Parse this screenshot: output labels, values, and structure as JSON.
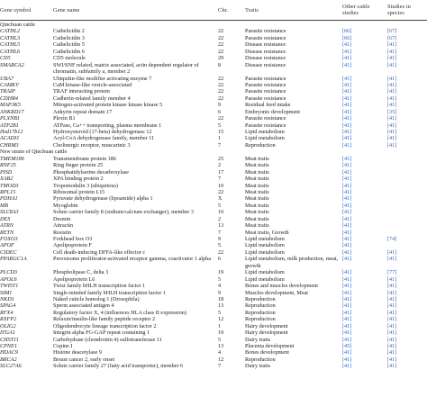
{
  "header": {
    "symbol": "Gene symbol",
    "name": "Gene name",
    "chr": "Chr.",
    "traits": "Traits",
    "other1": "Other cattle",
    "other2": "studies",
    "studies1": "Studies in",
    "studies2": "species"
  },
  "sections": [
    {
      "title": "Qinchuan cattle",
      "rows": [
        {
          "sym": "CATHL2",
          "name": "Cathelicidin 2",
          "chr": "22",
          "trait": "Parasite resistance",
          "other": "[66]",
          "species": "[67]"
        },
        {
          "sym": "CATHL3",
          "name": "Cathelicidin 3",
          "chr": "22",
          "trait": "Parasite resistance",
          "other": "[66]",
          "species": "[67]"
        },
        {
          "sym": "CATHL5",
          "name": "Cathelicidin 5",
          "chr": "22",
          "trait": "Disease resistance",
          "other": "[41]",
          "species": "[41]"
        },
        {
          "sym": "CATHL6",
          "name": "Cathelicidin 6",
          "chr": "22",
          "trait": "Disease resistance",
          "other": "[41]",
          "species": "[41]"
        },
        {
          "sym": "CD5",
          "name": "CD5 molecule",
          "chr": "29",
          "trait": "Disease resistance",
          "other": "[41]",
          "species": "[41]"
        },
        {
          "sym": "SMARCA2",
          "name": "SWI/SNF related, matrix associated, actin dependent regulator of chromatin, subfamily a, member 2",
          "chr": "8",
          "trait": "Disease resistance",
          "other": "[41]",
          "species": "[41]",
          "tall": true
        },
        {
          "sym": "UBA7",
          "name": "Ubiquitin-like modifier activating enzyme 7",
          "chr": "22",
          "trait": "Parasite resistance",
          "other": "[41]",
          "species": "[41]"
        },
        {
          "sym": "CAMKV",
          "name": "CaM kinase-like vesicle-associated",
          "chr": "22",
          "trait": "Parasite resistance",
          "other": "[41]",
          "species": "[41]"
        },
        {
          "sym": "TRAIP",
          "name": "TRAF interacting protein",
          "chr": "22",
          "trait": "Parasite resistance",
          "other": "[41]",
          "species": "[41]"
        },
        {
          "sym": "CDHR4",
          "name": "Cadherin-related family member 4",
          "chr": "22",
          "trait": "Parasite resistance",
          "other": "[41]",
          "species": "[41]"
        },
        {
          "sym": "MAP3K5",
          "name": "Mitogen-activated protein kinase kinase kinase 5",
          "chr": "9",
          "trait": "Residual feed intake",
          "other": "[41]",
          "species": "[41]"
        },
        {
          "sym": "ANKRD17",
          "name": "Ankyrin repeat domain 17",
          "chr": "6",
          "trait": "Embryonic development",
          "other": "[41]",
          "species": "[35]"
        },
        {
          "sym": "PLXNB1",
          "name": "Plexin B1",
          "chr": "22",
          "trait": "Parasite resistance",
          "other": "[41]",
          "species": "[41]"
        },
        {
          "sym": "ATP2B1",
          "name": "ATPase, Ca++ transporting, plasma membrane 1",
          "chr": "5",
          "trait": "Parasite resistance",
          "other": "[41]",
          "species": "[41]"
        },
        {
          "sym": "Hsd17b12",
          "name": "Hydroxysteroid (17-beta) dehydrogenase 12",
          "chr": "15",
          "trait": "Lipid metabolism",
          "other": "[41]",
          "species": "[41]"
        },
        {
          "sym": "ACADI1",
          "name": "Acyl-CoA dehydrogenase family, member 11",
          "chr": "1",
          "trait": "Lipid metabolism",
          "other": "[41]",
          "species": "[41]"
        },
        {
          "sym": "CHRM3",
          "name": "Cholinergic receptor, muscarinic 3",
          "chr": "7",
          "trait": "Reproduction",
          "other": "[41]",
          "species": "[41]"
        }
      ]
    },
    {
      "title": "New strain of Qinchuan cattle",
      "rows": [
        {
          "sym": "TMEM186",
          "name": "Transmembrane protein 186",
          "chr": "25",
          "trait": "Meat traits",
          "other": "[41]",
          "species": ""
        },
        {
          "sym": "RNF25",
          "name": "Ring finger protein 25",
          "chr": "2",
          "trait": "Meat traits",
          "other": "[41]",
          "species": ""
        },
        {
          "sym": "PISD",
          "name": "Phosphatidylserine decarboxylase",
          "chr": "17",
          "trait": "Meat traits",
          "other": "[41]",
          "species": ""
        },
        {
          "sym": "XAB2",
          "name": "XPA binding protein 2",
          "chr": "7",
          "trait": "Meat traits",
          "other": "[41]",
          "species": ""
        },
        {
          "sym": "TMOD3",
          "name": "Tropomodulin 3 (ubiquitous)",
          "chr": "10",
          "trait": "Meat traits",
          "other": "[41]",
          "species": ""
        },
        {
          "sym": "RPL15",
          "name": "Ribosomal protein L15",
          "chr": "22",
          "trait": "Meat traits",
          "other": "[41]",
          "species": ""
        },
        {
          "sym": "PDHA1",
          "name": "Pyruvate dehydrogenase (lipoamide) alpha 1",
          "chr": "X",
          "trait": "Meat traits",
          "other": "[41]",
          "species": ""
        },
        {
          "sym": "MB",
          "name": "Myoglobin",
          "chr": "5",
          "trait": "Meat traits",
          "other": "[41]",
          "species": ""
        },
        {
          "sym": "SLC8A3",
          "name": "Solute carrier family 8 (sodium/calcium exchanger), member 3",
          "chr": "10",
          "trait": "Meat traits",
          "other": "[41]",
          "species": ""
        },
        {
          "sym": "DES",
          "name": "Desmin",
          "chr": "2",
          "trait": "Meat traits",
          "other": "[41]",
          "species": ""
        },
        {
          "sym": "ATRN",
          "name": "Attractin",
          "chr": "13",
          "trait": "Meat traits",
          "other": "[41]",
          "species": ""
        },
        {
          "sym": "RETN",
          "name": "Resistin",
          "chr": "7",
          "trait": "Meat traits, Growth",
          "other": "[41]",
          "species": ""
        },
        {
          "sym": "FOXO3",
          "name": "Forkhead box O3",
          "chr": "9",
          "trait": "Lipid metabolism",
          "other": "[41]",
          "species": "[74]"
        },
        {
          "sym": "APOF",
          "name": "Apolipoprotein F",
          "chr": "5",
          "trait": "Lipid metabolism",
          "other": "[41]",
          "species": ""
        },
        {
          "sym": "CIDEC",
          "name": "Cell death-inducing DFFA-like effector c",
          "chr": "22",
          "trait": "Lipid metabolism",
          "other": "[41]",
          "species": "[41]"
        },
        {
          "sym": "PPARGC1A",
          "name": "Peroxisome proliferator-activated receptor gamma, coactivator 1 alpha",
          "chr": "6",
          "trait": "Lipid metabolism, milk production, meat, growth",
          "other": "[41]",
          "species": "[41]",
          "tall": true
        },
        {
          "sym": "PLCD3",
          "name": "Phospholipase C, delta 3",
          "chr": "19",
          "trait": "Lipid metabolism",
          "other": "[41]",
          "species": "[77]"
        },
        {
          "sym": "APOL6",
          "name": "Apolipoprotein L6",
          "chr": "5",
          "trait": "Lipid metabolism",
          "other": "[41]",
          "species": "[41]"
        },
        {
          "sym": "TWIST1",
          "name": "Twist family bHLH transcription factor 1",
          "chr": "4",
          "trait": "Bones and muscles development",
          "other": "[41]",
          "species": "[41]"
        },
        {
          "sym": "SIM1",
          "name": "Single-minded family bHLH transcription factor 1",
          "chr": "9",
          "trait": "Muscles development, Meat",
          "other": "[41]",
          "species": "[41]"
        },
        {
          "sym": "NKD1",
          "name": "Naked cuticle homolog 1 (Drosophila)",
          "chr": "18",
          "trait": "Reproduction",
          "other": "[41]",
          "species": "[41]"
        },
        {
          "sym": "SPAG4",
          "name": "Sperm associated antigen 4",
          "chr": "13",
          "trait": "Reproduction",
          "other": "[41]",
          "species": "[41]"
        },
        {
          "sym": "RFX4",
          "name": "Regulatory factor X, 4 (influences HLA class II expression)",
          "chr": "5",
          "trait": "Reproduction",
          "other": "[41]",
          "species": "[41]"
        },
        {
          "sym": "RXFP2",
          "name": "Relaxin/insulin-like family peptide receptor 2",
          "chr": "12",
          "trait": "Reproduction",
          "other": "[41]",
          "species": "[41]"
        },
        {
          "sym": "OLIG2",
          "name": "Oligodendrocyte lineage transcription factor 2",
          "chr": "1",
          "trait": "Hairy development",
          "other": "[41]",
          "species": "[41]"
        },
        {
          "sym": "ITGA1",
          "name": "Integrin alpha FG-GAP repeat containing 1",
          "chr": "19",
          "trait": "Hairy development",
          "other": "[41]",
          "species": "[41]"
        },
        {
          "sym": "CHST11",
          "name": "Carbohydrate (chondroitin 4) sulfotransferase 11",
          "chr": "5",
          "trait": "Dairy traits",
          "other": "[41]",
          "species": "[41]"
        },
        {
          "sym": "CPNE1",
          "name": "Copine I",
          "chr": "13",
          "trait": "Placenta development",
          "other": "[45]",
          "species": "[41]"
        },
        {
          "sym": "HDAC9",
          "name": "Histone deacetylase 9",
          "chr": "4",
          "trait": "Bones development",
          "other": "[41]",
          "species": "[41]"
        },
        {
          "sym": "BRCA2",
          "name": "Breast cancer 2, early onset",
          "chr": "12",
          "trait": "Reproduction",
          "other": "[41]",
          "species": "[41]"
        },
        {
          "sym": "SLC27A6",
          "name": "Solute carrier family 27 (fatty acid transporter), member 6",
          "chr": "7",
          "trait": "Dairy traits",
          "other": "[41]",
          "species": "[41]"
        }
      ]
    }
  ]
}
